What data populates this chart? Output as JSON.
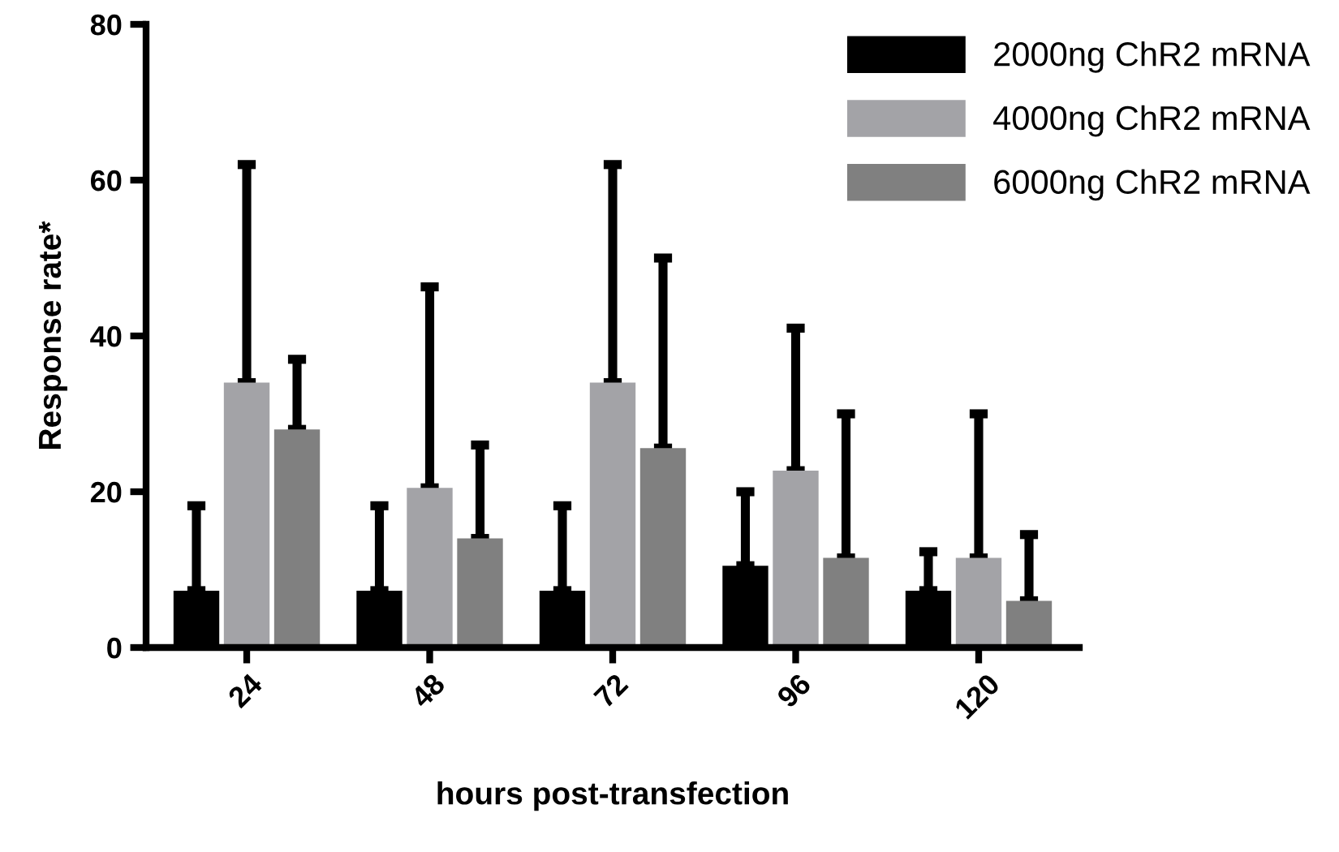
{
  "chart_data": {
    "type": "bar",
    "xlabel": "hours post-transfection",
    "ylabel": "Response rate*",
    "categories": [
      "24",
      "48",
      "72",
      "96",
      "120"
    ],
    "series": [
      {
        "name": "2000ng ChR2 mRNA",
        "color": "#000000",
        "values": [
          7.3,
          7.3,
          7.3,
          10.5,
          7.3
        ],
        "errors": [
          [
            7.3,
            18.2
          ],
          [
            7.3,
            18.2
          ],
          [
            7.3,
            18.2
          ],
          [
            10.5,
            20
          ],
          [
            7.3,
            12.3
          ]
        ]
      },
      {
        "name": "4000ng ChR2 mRNA",
        "color": "#a3a3a7",
        "values": [
          34,
          20.5,
          34,
          22.7,
          11.5
        ],
        "errors": [
          [
            34,
            62
          ],
          [
            20.5,
            46.3
          ],
          [
            34,
            62
          ],
          [
            22.7,
            41
          ],
          [
            11.5,
            30
          ]
        ]
      },
      {
        "name": "6000ng ChR2 mRNA",
        "color": "#808080",
        "values": [
          28,
          14,
          25.6,
          11.5,
          6
        ],
        "errors": [
          [
            28,
            37
          ],
          [
            14,
            26
          ],
          [
            25.6,
            50
          ],
          [
            11.5,
            30
          ],
          [
            6,
            14.5
          ]
        ]
      }
    ],
    "ylim": [
      0,
      80
    ],
    "yticks": [
      0,
      20,
      40,
      60,
      80
    ],
    "grid": false,
    "legend": "top right"
  }
}
